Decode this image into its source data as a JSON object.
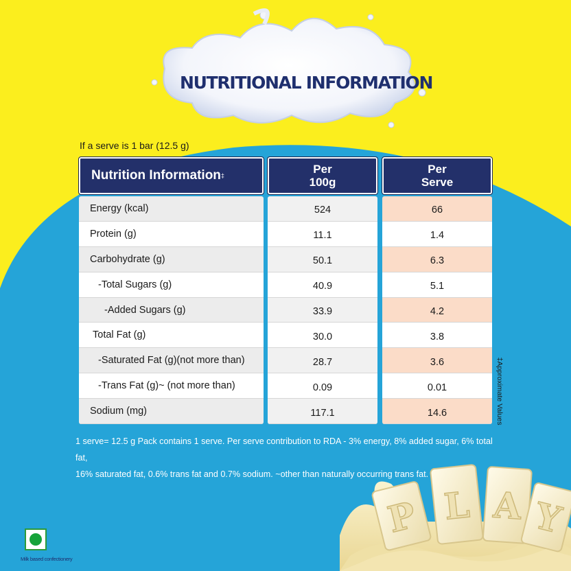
{
  "colors": {
    "yellow": "#fbee1e",
    "blue": "#25a4d8",
    "navy": "#23306a",
    "serve_highlight": "#fbdcc8"
  },
  "title": "NUTRITIONAL INFORMATION",
  "serve_note": "If a serve is 1 bar (12.5 g)",
  "table": {
    "header": {
      "name": "Nutrition Information",
      "dagger": "‡",
      "per100_line1": "Per",
      "per100_line2": "100g",
      "serve_line1": "Per",
      "serve_line2": "Serve"
    },
    "rows": [
      {
        "name": "Energy (kcal)",
        "per100": "524",
        "serve": "66"
      },
      {
        "name": "Protein (g)",
        "per100": "11.1",
        "serve": "1.4"
      },
      {
        "name": "Carbohydrate (g)",
        "per100": "50.1",
        "serve": "6.3"
      },
      {
        "name": "-Total Sugars (g)",
        "per100": "40.9",
        "serve": "5.1"
      },
      {
        "name": "-Added Sugars (g)",
        "per100": "33.9",
        "serve": "4.2"
      },
      {
        "name": "Total Fat (g)",
        "per100": "30.0",
        "serve": "3.8"
      },
      {
        "name": "-Saturated Fat (g)(not more than)",
        "per100": "28.7",
        "serve": "3.6"
      },
      {
        "name": "-Trans Fat (g)~ (not more than)",
        "per100": "0.09",
        "serve": "0.01"
      },
      {
        "name": "Sodium (mg)",
        "per100": "117.1",
        "serve": "14.6"
      }
    ]
  },
  "approx_note": "‡Approximate Values",
  "footnote": {
    "line1": "1 serve= 12.5 g Pack contains 1 serve. Per serve contribution to RDA - 3% energy, 8% added sugar, 6% total fat,",
    "line2": "16% saturated fat, 0.6% trans fat and 0.7% sodium. ~other than naturally occurring trans fat."
  },
  "veg_label": "Milk based confectionery",
  "bar_letters": [
    "P",
    "L",
    "A",
    "Y"
  ],
  "icons": {
    "veg": "veg-symbol-icon",
    "splash": "milk-splash-icon",
    "chocolate": "chocolate-bar-icon"
  }
}
